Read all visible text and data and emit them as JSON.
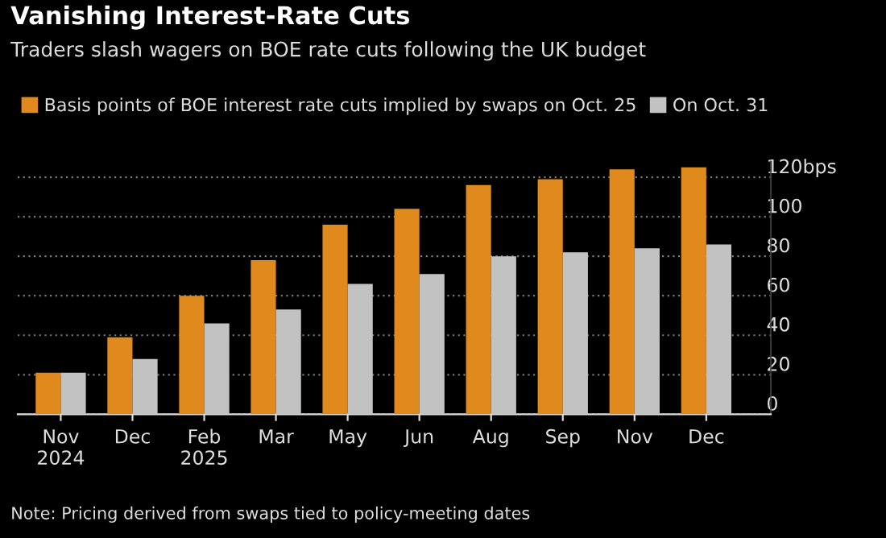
{
  "chart_data": {
    "type": "bar",
    "title": "Vanishing Interest-Rate Cuts",
    "subtitle": "Traders slash wagers on BOE rate cuts following the UK budget",
    "categories": [
      "Nov\n2024",
      "Dec",
      "Feb\n2025",
      "Mar",
      "May",
      "Jun",
      "Aug",
      "Sep",
      "Nov",
      "Dec"
    ],
    "series": [
      {
        "name": "Basis points of BOE interest rate cuts implied by swaps on Oct. 25",
        "color": "#e08a1e",
        "values": [
          21,
          39,
          60,
          78,
          96,
          104,
          116,
          119,
          124,
          125
        ]
      },
      {
        "name": "On Oct. 31",
        "color": "#c2c2c2",
        "values": [
          21,
          28,
          46,
          53,
          66,
          71,
          80,
          82,
          84,
          86
        ]
      }
    ],
    "ylim": [
      0,
      128
    ],
    "yticks": [
      0,
      20,
      40,
      60,
      80,
      100,
      {
        "value": 120,
        "label": "120bps"
      }
    ],
    "grid": "y",
    "legend": "top left",
    "annotations": [
      "Note: Pricing derived from swaps tied to policy-meeting dates"
    ]
  }
}
